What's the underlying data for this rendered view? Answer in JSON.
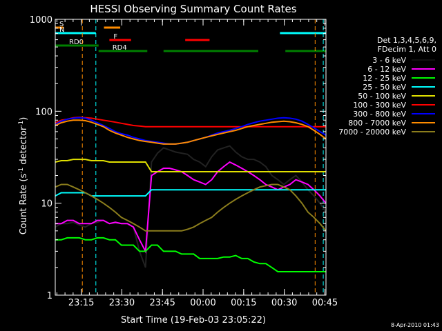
{
  "chart_data": {
    "type": "line",
    "title": "HESSI Observing Summary Count Rates",
    "xlabel": "Start Time (19-Feb-03 23:05:22)",
    "ylabel": "Count Rate (s",
    "ylabel_sup": "-1",
    "ylabel_mid": " detector",
    "ylabel_end": ")",
    "xrange": [
      0,
      100
    ],
    "ylim": [
      1,
      1000
    ],
    "yscale": "log",
    "xticks": [
      {
        "t": 9.6,
        "label": "23:15"
      },
      {
        "t": 24.6,
        "label": "23:30"
      },
      {
        "t": 39.6,
        "label": "23:45"
      },
      {
        "t": 54.6,
        "label": "00:00"
      },
      {
        "t": 69.6,
        "label": "00:15"
      },
      {
        "t": 84.6,
        "label": "00:30"
      },
      {
        "t": 99.6,
        "label": "00:45"
      }
    ],
    "yticks": [
      {
        "v": 1,
        "label": "1"
      },
      {
        "v": 10,
        "label": "10"
      },
      {
        "v": 100,
        "label": "100"
      },
      {
        "v": 1000,
        "label": "1000"
      }
    ],
    "legend_header": [
      "Det 1,3,4,5,6,9,",
      "FDecim 1, Att 0"
    ],
    "legend_placement": "right",
    "footer": "8-Apr-2010 01:43",
    "series": [
      {
        "name": "3 - 6 keV",
        "color": "#000000",
        "x": [
          0,
          2,
          4,
          6,
          8,
          10,
          12,
          14,
          16,
          18,
          20,
          22,
          24,
          26,
          28,
          30,
          32,
          34,
          36,
          38,
          40,
          42,
          44,
          46,
          48,
          50,
          52,
          54,
          56,
          58,
          60,
          62,
          64,
          66,
          68,
          70,
          72,
          74,
          76,
          78,
          80,
          82,
          84,
          86,
          88,
          90
        ],
        "y": [
          5.5,
          6,
          6,
          6.2,
          5.8,
          5.5,
          6,
          6.2,
          6.5,
          6,
          6.1,
          6,
          6,
          5.5,
          3,
          2,
          28,
          35,
          40,
          38,
          36,
          35,
          34,
          30,
          28,
          25,
          32,
          38,
          40,
          42,
          36,
          32,
          30,
          30,
          28,
          25,
          20,
          18,
          16,
          18,
          20,
          17,
          14,
          12,
          10,
          8
        ]
      },
      {
        "name": "6 - 12 keV",
        "color": "#ff00ff",
        "x": [
          0,
          2,
          4,
          6,
          8,
          10,
          12,
          14,
          16,
          18,
          20,
          22,
          24,
          26,
          28,
          30,
          32,
          34,
          36,
          38,
          40,
          42,
          44,
          46,
          48,
          50,
          52,
          54,
          56,
          58,
          60,
          62,
          64,
          66,
          68,
          70,
          72,
          74,
          76,
          78,
          80,
          82,
          84,
          86,
          88,
          90
        ],
        "y": [
          6,
          6,
          6.5,
          6.5,
          6,
          6,
          6,
          6.5,
          6.5,
          6,
          6.2,
          6,
          6,
          5.5,
          4,
          3,
          20,
          22,
          24,
          24,
          23,
          22,
          20,
          18,
          17,
          16,
          18,
          22,
          25,
          28,
          26,
          24,
          22,
          20,
          18,
          16,
          15,
          14,
          15,
          16,
          18,
          17,
          16,
          14,
          12,
          10
        ]
      },
      {
        "name": "12 - 25 keV",
        "color": "#00ff00",
        "x": [
          0,
          2,
          4,
          6,
          8,
          10,
          12,
          14,
          16,
          18,
          20,
          22,
          24,
          26,
          28,
          30,
          32,
          34,
          36,
          38,
          40,
          42,
          44,
          46,
          48,
          50,
          52,
          54,
          56,
          58,
          60,
          62,
          64,
          66,
          68,
          70,
          72,
          74,
          76,
          78,
          80,
          82,
          84,
          86,
          88,
          90
        ],
        "y": [
          4,
          4,
          4.2,
          4.2,
          4.2,
          4,
          4,
          4.2,
          4.2,
          4,
          4,
          3.5,
          3.5,
          3.5,
          3,
          3,
          3.5,
          3.5,
          3,
          3,
          3,
          2.8,
          2.8,
          2.8,
          2.5,
          2.5,
          2.5,
          2.5,
          2.6,
          2.6,
          2.7,
          2.5,
          2.5,
          2.3,
          2.2,
          2.2,
          2,
          1.8,
          1.8,
          1.8,
          1.8,
          1.8,
          1.8,
          1.8,
          1.8,
          1.8
        ]
      },
      {
        "name": "25 - 50 keV",
        "color": "#00ffff",
        "x": [
          0,
          2,
          4,
          6,
          8,
          10,
          12,
          14,
          16,
          18,
          20,
          22,
          24,
          26,
          28,
          30,
          32,
          34,
          36,
          38,
          40,
          42,
          44,
          46,
          48,
          50,
          52,
          54,
          56,
          58,
          60,
          62,
          64,
          66,
          68,
          70,
          72,
          74,
          76,
          78,
          80,
          82,
          84,
          86,
          88,
          90
        ],
        "y": [
          12,
          13,
          13,
          13,
          13,
          13,
          12,
          12,
          12,
          12,
          12,
          12,
          12,
          12,
          12,
          12,
          14,
          14,
          14,
          14,
          14,
          14,
          14,
          14,
          14,
          14,
          14,
          14,
          14,
          14,
          14,
          14,
          14,
          14,
          14,
          14,
          14,
          14,
          14,
          14,
          14,
          14,
          14,
          14,
          14,
          14
        ]
      },
      {
        "name": "50 - 100 keV",
        "color": "#e0e000",
        "x": [
          0,
          2,
          4,
          6,
          8,
          10,
          12,
          14,
          16,
          18,
          20,
          22,
          24,
          26,
          28,
          30,
          32,
          34,
          36,
          38,
          40,
          42,
          44,
          46,
          48,
          50,
          52,
          54,
          56,
          58,
          60,
          62,
          64,
          66,
          68,
          70,
          72,
          74,
          76,
          78,
          80,
          82,
          84,
          86,
          88,
          90
        ],
        "y": [
          28,
          29,
          29,
          30,
          30,
          30,
          29,
          29,
          29,
          28,
          28,
          28,
          28,
          28,
          28,
          28,
          22,
          22,
          22,
          22,
          22,
          22,
          22,
          22,
          22,
          22,
          22,
          22,
          22,
          22,
          22,
          22,
          22,
          22,
          22,
          22,
          22,
          22,
          22,
          22,
          22,
          22,
          22,
          22,
          22,
          22
        ]
      },
      {
        "name": "100 - 300 keV",
        "color": "#ff0000",
        "x": [
          0,
          2,
          4,
          6,
          8,
          10,
          12,
          14,
          16,
          18,
          20,
          22,
          24,
          26,
          28,
          30,
          32,
          34,
          36,
          38,
          40,
          42,
          44,
          46,
          48,
          50,
          52,
          54,
          56,
          58,
          60,
          62,
          64,
          66,
          68,
          70,
          72,
          74,
          76,
          78,
          80,
          82,
          84,
          86,
          88,
          90
        ],
        "y": [
          75,
          80,
          82,
          85,
          86,
          85,
          84,
          82,
          80,
          78,
          76,
          74,
          72,
          70,
          69,
          68,
          68,
          68,
          68,
          68,
          68,
          68,
          68,
          68,
          68,
          68,
          68,
          68,
          68,
          68,
          68,
          68,
          68,
          68,
          68,
          68,
          68,
          68,
          68,
          68,
          68,
          68,
          68,
          68,
          68,
          68
        ]
      },
      {
        "name": "300 - 800 keV",
        "color": "#0000ff",
        "x": [
          0,
          2,
          4,
          6,
          8,
          10,
          12,
          14,
          16,
          18,
          20,
          22,
          24,
          26,
          28,
          30,
          32,
          34,
          36,
          38,
          40,
          42,
          44,
          46,
          48,
          50,
          52,
          54,
          56,
          58,
          60,
          62,
          64,
          66,
          68,
          70,
          72,
          74,
          76,
          78,
          80,
          82,
          84,
          86,
          88,
          90
        ],
        "y": [
          72,
          78,
          82,
          84,
          85,
          84,
          80,
          75,
          70,
          65,
          60,
          57,
          55,
          52,
          50,
          48,
          47,
          46,
          45,
          44,
          44,
          45,
          46,
          48,
          50,
          52,
          55,
          58,
          60,
          62,
          65,
          68,
          72,
          75,
          78,
          80,
          82,
          84,
          85,
          84,
          82,
          78,
          72,
          66,
          60,
          55
        ]
      },
      {
        "name": "800 - 7000 keV",
        "color": "#ff8c00",
        "x": [
          0,
          2,
          4,
          6,
          8,
          10,
          12,
          14,
          16,
          18,
          20,
          22,
          24,
          26,
          28,
          30,
          32,
          34,
          36,
          38,
          40,
          42,
          44,
          46,
          48,
          50,
          52,
          54,
          56,
          58,
          60,
          62,
          64,
          66,
          68,
          70,
          72,
          74,
          76,
          78,
          80,
          82,
          84,
          86,
          88,
          90
        ],
        "y": [
          70,
          75,
          78,
          80,
          80,
          79,
          76,
          72,
          68,
          62,
          58,
          55,
          52,
          50,
          48,
          47,
          46,
          45,
          44,
          44,
          44,
          45,
          46,
          48,
          50,
          52,
          54,
          56,
          58,
          60,
          62,
          65,
          68,
          70,
          72,
          74,
          76,
          77,
          78,
          77,
          75,
          72,
          68,
          62,
          56,
          50
        ]
      },
      {
        "name": "7000 - 20000 keV",
        "color": "#8b7d1c",
        "x": [
          0,
          2,
          4,
          6,
          8,
          10,
          12,
          14,
          16,
          18,
          20,
          22,
          24,
          26,
          28,
          30,
          32,
          34,
          36,
          38,
          40,
          42,
          44,
          46,
          48,
          50,
          52,
          54,
          56,
          58,
          60,
          62,
          64,
          66,
          68,
          70,
          72,
          74,
          76,
          78,
          80,
          82,
          84,
          86,
          88,
          90
        ],
        "y": [
          15,
          16,
          16,
          15,
          14,
          13,
          12,
          11,
          10,
          9,
          8,
          7,
          6.5,
          6,
          5.5,
          5,
          5,
          5,
          5,
          5,
          5,
          5,
          5.2,
          5.5,
          6,
          6.5,
          7,
          8,
          9,
          10,
          11,
          12,
          13,
          14,
          15,
          15.5,
          16,
          16,
          15,
          14,
          12,
          10,
          8,
          7,
          6,
          5
        ]
      }
    ],
    "state_bars": [
      {
        "label": "S",
        "color": "#ff8c00",
        "segments": [
          [
            0,
            3
          ],
          [
            18,
            24
          ]
        ]
      },
      {
        "label": "N",
        "color": "#00ffff",
        "segments": [
          [
            0,
            15
          ],
          [
            83,
            100
          ]
        ]
      },
      {
        "label": "F",
        "color": "#ff0000",
        "segments": [
          [
            20,
            28
          ],
          [
            48,
            57
          ]
        ]
      },
      {
        "label": "RD0",
        "color": "#008000",
        "segments": [
          [
            0,
            16
          ]
        ]
      },
      {
        "label": "RD4",
        "color": "#008000",
        "segments": [
          [
            16,
            34
          ],
          [
            40,
            75
          ],
          [
            85,
            100
          ]
        ]
      }
    ]
  }
}
